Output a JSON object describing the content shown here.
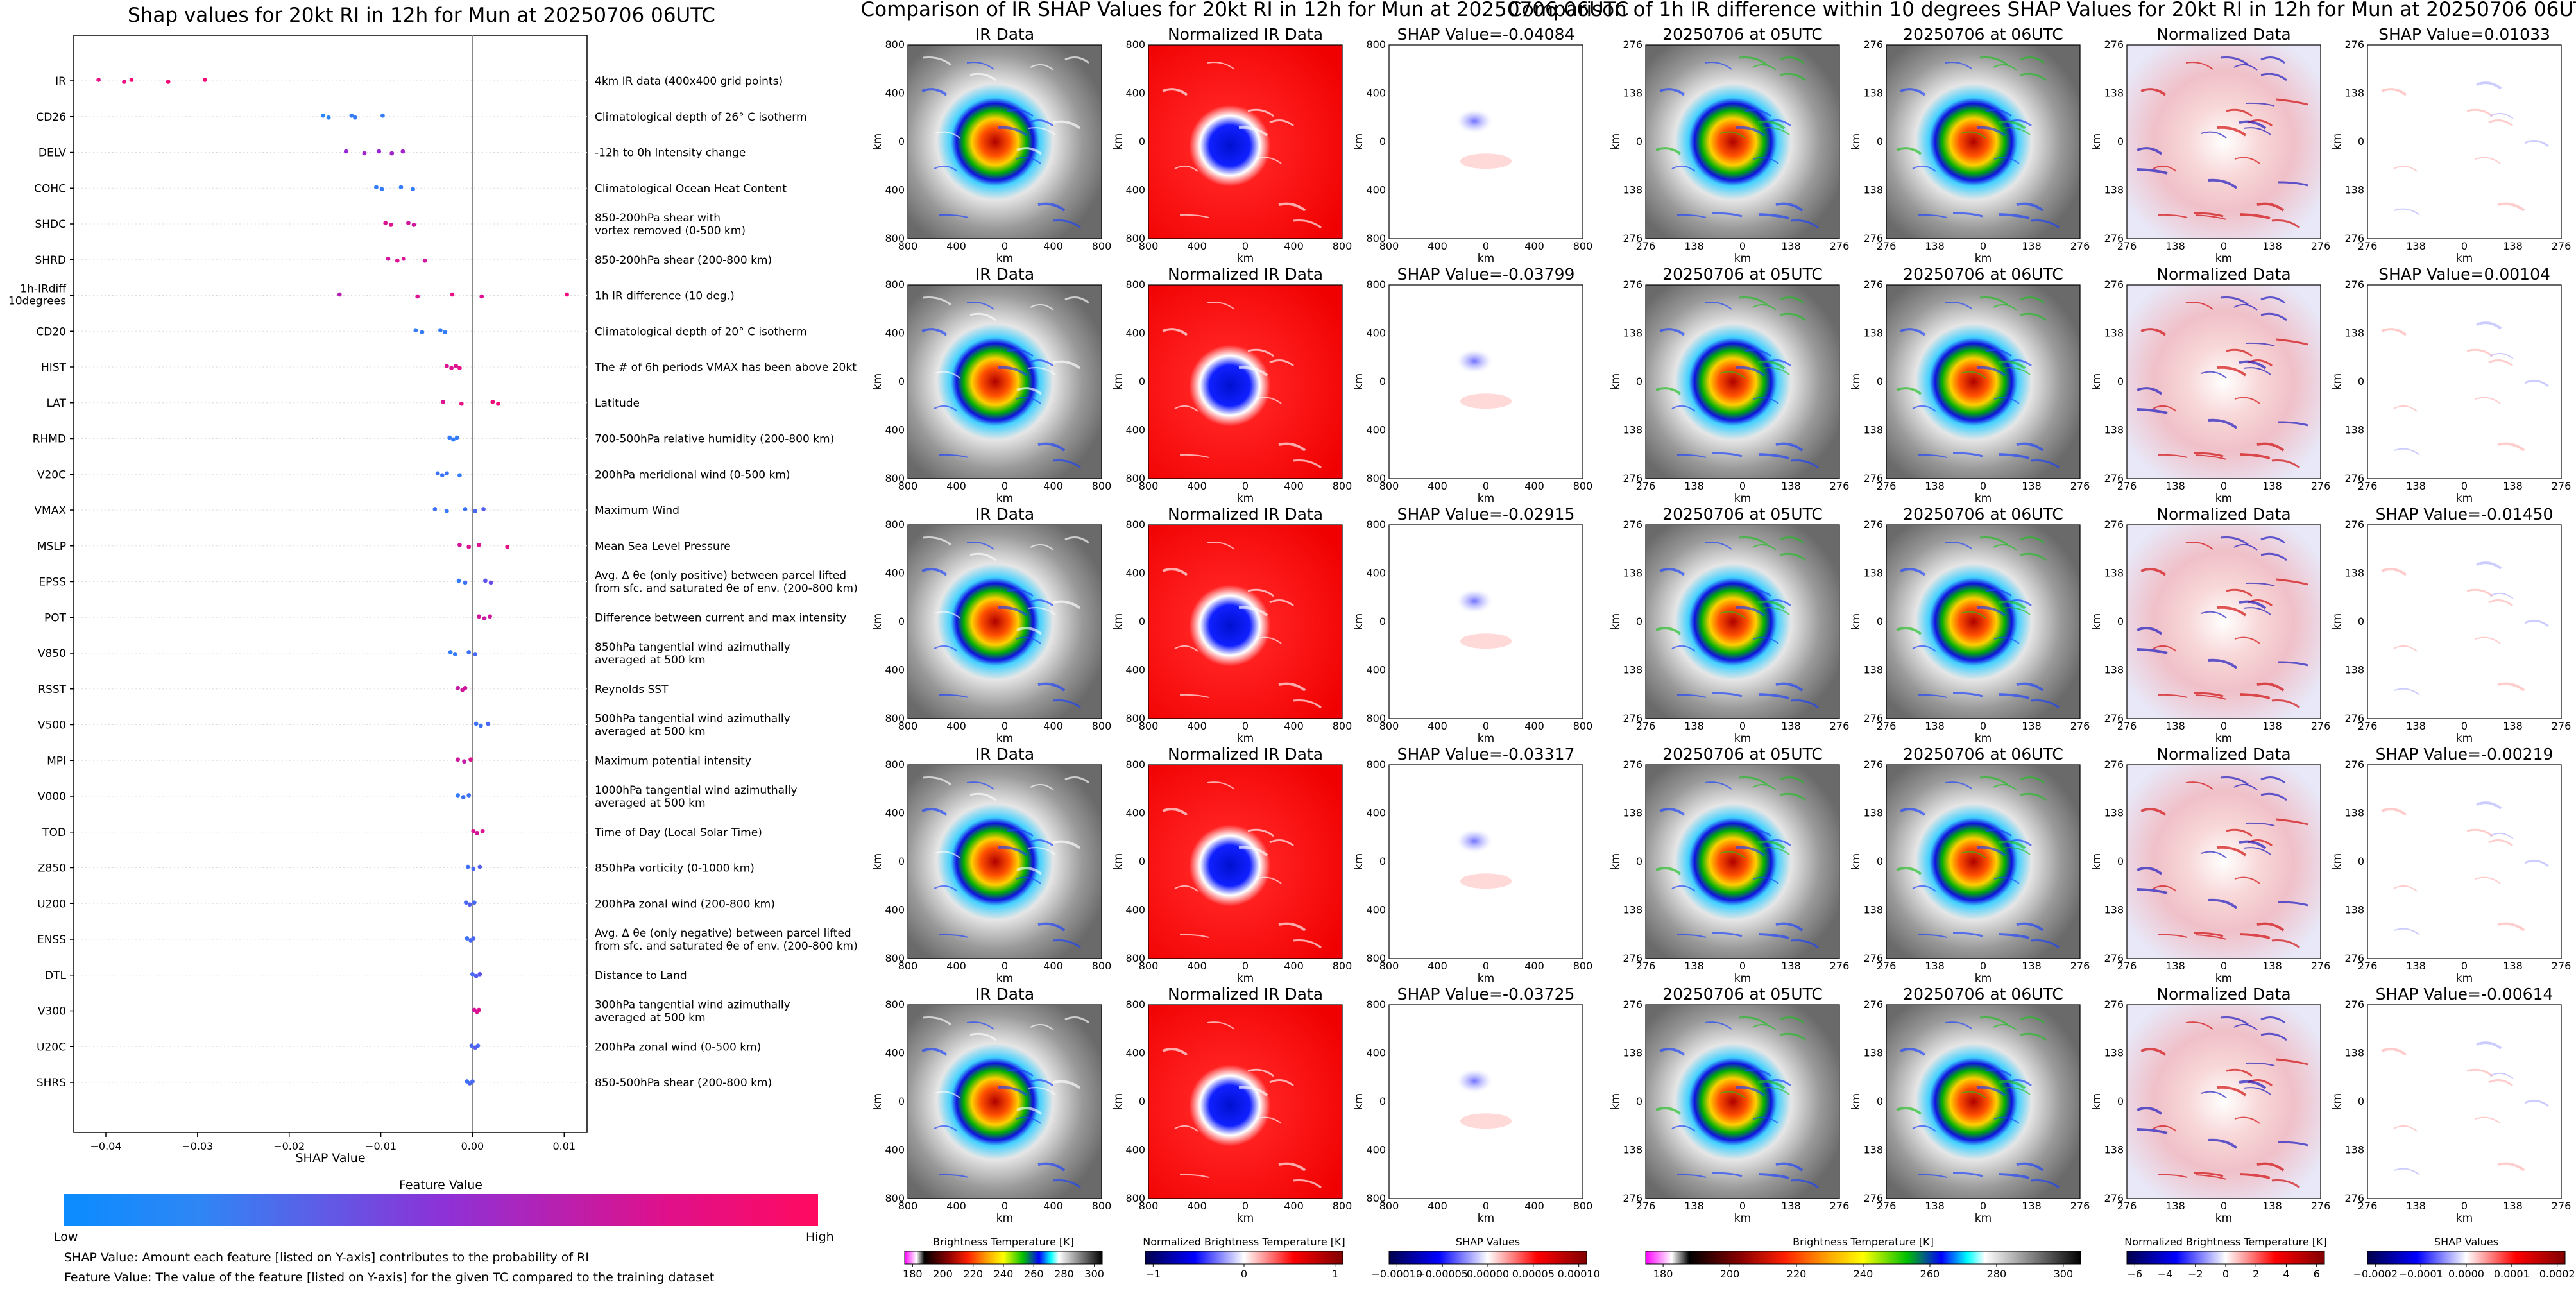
{
  "left_panel": {
    "title": "Shap values for 20kt RI in 12h for Mun at 20250706 06UTC",
    "xlabel": "SHAP Value",
    "colorbar_title": "Feature Value",
    "colorbar_low": "Low",
    "colorbar_high": "High",
    "note1": "SHAP Value: Amount each feature [listed on Y-axis] contributes to the probability of RI",
    "note2": "Feature Value: The value of the feature [listed on Y-axis] for the given TC compared to the training dataset",
    "colors": {
      "low": "#1e90ff",
      "mid": "#8a2be2",
      "high": "#ff0a6e"
    }
  },
  "ir_panel": {
    "title": "Comparison of IR SHAP Values for 20kt RI in 12h for Mun at 20250706 06UTC",
    "col_titles": [
      "IR Data",
      "Normalized IR Data"
    ],
    "shap_titles": [
      "SHAP Value=-0.04084",
      "SHAP Value=-0.03799",
      "SHAP Value=-0.02915",
      "SHAP Value=-0.03317",
      "SHAP Value=-0.03725"
    ],
    "axis_label": "km",
    "ticks": [
      "800",
      "400",
      "0",
      "400",
      "800"
    ],
    "cb1": {
      "label": "Brightness Temperature [K]",
      "ticks": [
        "180",
        "200",
        "220",
        "240",
        "260",
        "280",
        "300"
      ]
    },
    "cb2": {
      "label": "Normalized Brightness Temperature [K]",
      "ticks": [
        "−1",
        "0",
        "1"
      ]
    },
    "cb3": {
      "label": "SHAP Values",
      "ticks": [
        "−0.00010",
        "−0.00005",
        "0.00000",
        "0.00005",
        "0.00010"
      ]
    }
  },
  "diff_panel": {
    "title": "Comparison of 1h IR difference within 10 degrees SHAP Values for 20kt RI in 12h for Mun at 20250706 06UTC",
    "col_titles": [
      "20250706 at 05UTC",
      "20250706 at 06UTC",
      "Normalized Data"
    ],
    "shap_titles": [
      "SHAP Value=0.01033",
      "SHAP Value=0.00104",
      "SHAP Value=-0.01450",
      "SHAP Value=-0.00219",
      "SHAP Value=-0.00614"
    ],
    "axis_label": "km",
    "ticks": [
      "276",
      "138",
      "0",
      "138",
      "276"
    ],
    "cb1": {
      "label": "Brightness Temperature [K]",
      "ticks": [
        "180",
        "200",
        "220",
        "240",
        "260",
        "280",
        "300"
      ]
    },
    "cb2": {
      "label": "Normalized Brightness Temperature [K]",
      "ticks": [
        "−6",
        "−4",
        "−2",
        "0",
        "2",
        "4",
        "6"
      ]
    },
    "cb3": {
      "label": "SHAP Values",
      "ticks": [
        "−0.0002",
        "−0.0001",
        "0.0000",
        "0.0001",
        "0.0002"
      ]
    }
  },
  "chart_data": {
    "type": "scatter",
    "title": "Shap values for 20kt RI in 12h for Mun at 20250706 06UTC",
    "xlabel": "SHAP Value",
    "ylabel": "",
    "xlim": [
      -0.0435,
      0.0125
    ],
    "xticks": [
      "−0.04",
      "−0.03",
      "−0.02",
      "−0.01",
      "0.00",
      "0.01"
    ],
    "xtick_values": [
      -0.04,
      -0.03,
      -0.02,
      -0.01,
      0.0,
      0.01
    ],
    "grid": false,
    "features": [
      {
        "name": "IR",
        "desc": "4km IR data (400x400 grid points)",
        "points": [
          [
            -0.0408,
            0.9
          ],
          [
            -0.038,
            0.9
          ],
          [
            -0.0372,
            0.95
          ],
          [
            -0.0332,
            0.95
          ],
          [
            -0.0292,
            0.95
          ]
        ]
      },
      {
        "name": "CD26",
        "desc": "Climatological depth of 26° C isotherm",
        "points": [
          [
            -0.0163,
            0.05
          ],
          [
            -0.0157,
            0.05
          ],
          [
            -0.0132,
            0.1
          ],
          [
            -0.0128,
            0.1
          ],
          [
            -0.0098,
            0.1
          ]
        ]
      },
      {
        "name": "DELV",
        "desc": "-12h to 0h Intensity change",
        "points": [
          [
            -0.0138,
            0.55
          ],
          [
            -0.0118,
            0.6
          ],
          [
            -0.0102,
            0.55
          ],
          [
            -0.0088,
            0.6
          ],
          [
            -0.0076,
            0.6
          ]
        ]
      },
      {
        "name": "COHC",
        "desc": "Climatological Ocean Heat Content",
        "points": [
          [
            -0.0105,
            0.1
          ],
          [
            -0.0099,
            0.1
          ],
          [
            -0.0078,
            0.1
          ],
          [
            -0.0065,
            0.1
          ]
        ]
      },
      {
        "name": "SHDC",
        "desc": "850-200hPa shear with|vortex removed (0-500 km)",
        "points": [
          [
            -0.0095,
            0.85
          ],
          [
            -0.0089,
            0.85
          ],
          [
            -0.007,
            0.8
          ],
          [
            -0.0064,
            0.8
          ]
        ]
      },
      {
        "name": "SHRD",
        "desc": "850-200hPa shear (200-800 km)",
        "points": [
          [
            -0.0092,
            0.8
          ],
          [
            -0.0082,
            0.85
          ],
          [
            -0.0075,
            0.85
          ],
          [
            -0.0052,
            0.8
          ]
        ]
      },
      {
        "name": "1h-IRdiff|10degrees",
        "desc": "1h IR difference (10 deg.)",
        "points": [
          [
            -0.0145,
            0.7
          ],
          [
            -0.006,
            0.85
          ],
          [
            -0.0022,
            0.9
          ],
          [
            0.001,
            0.85
          ],
          [
            0.0103,
            0.95
          ]
        ]
      },
      {
        "name": "CD20",
        "desc": "Climatological depth of 20° C isotherm",
        "points": [
          [
            -0.0062,
            0.1
          ],
          [
            -0.0055,
            0.1
          ],
          [
            -0.0035,
            0.1
          ],
          [
            -0.003,
            0.1
          ]
        ]
      },
      {
        "name": "HIST",
        "desc": "The # of 6h periods VMAX has been above 20kt",
        "points": [
          [
            -0.0028,
            0.85
          ],
          [
            -0.0023,
            0.85
          ],
          [
            -0.0018,
            0.85
          ],
          [
            -0.0014,
            0.9
          ]
        ]
      },
      {
        "name": "LAT",
        "desc": "Latitude",
        "points": [
          [
            -0.0032,
            0.85
          ],
          [
            -0.0012,
            0.9
          ],
          [
            0.0022,
            0.95
          ],
          [
            0.0028,
            0.95
          ]
        ]
      },
      {
        "name": "RHMD",
        "desc": "700-500hPa relative humidity (200-800 km)",
        "points": [
          [
            -0.0025,
            0.1
          ],
          [
            -0.0021,
            0.1
          ],
          [
            -0.0017,
            0.1
          ]
        ]
      },
      {
        "name": "V20C",
        "desc": "200hPa meridional wind (0-500 km)",
        "points": [
          [
            -0.0038,
            0.15
          ],
          [
            -0.0033,
            0.15
          ],
          [
            -0.0028,
            0.15
          ],
          [
            -0.0014,
            0.1
          ]
        ]
      },
      {
        "name": "VMAX",
        "desc": "Maximum Wind",
        "points": [
          [
            -0.0041,
            0.15
          ],
          [
            -0.0028,
            0.1
          ],
          [
            -0.0008,
            0.15
          ],
          [
            0.0003,
            0.2
          ],
          [
            0.0012,
            0.25
          ]
        ]
      },
      {
        "name": "MSLP",
        "desc": "Mean Sea Level Pressure",
        "points": [
          [
            -0.0014,
            0.8
          ],
          [
            -0.0004,
            0.85
          ],
          [
            0.0007,
            0.85
          ],
          [
            0.0038,
            0.9
          ]
        ]
      },
      {
        "name": "EPSS",
        "desc": "Avg. Δ θe (only positive) between parcel lifted|from sfc. and saturated θe of env. (200-800 km)",
        "points": [
          [
            -0.0015,
            0.1
          ],
          [
            -0.0008,
            0.15
          ],
          [
            0.0014,
            0.3
          ],
          [
            0.002,
            0.35
          ]
        ]
      },
      {
        "name": "POT",
        "desc": "Difference between current and max intensity",
        "points": [
          [
            0.0007,
            0.8
          ],
          [
            0.0013,
            0.75
          ],
          [
            0.0019,
            0.8
          ]
        ]
      },
      {
        "name": "V850",
        "desc": "850hPa tangential wind azimuthally|averaged at 500 km",
        "points": [
          [
            -0.0024,
            0.1
          ],
          [
            -0.0019,
            0.1
          ],
          [
            -0.0004,
            0.15
          ],
          [
            0.0003,
            0.2
          ]
        ]
      },
      {
        "name": "RSST",
        "desc": "Reynolds SST",
        "points": [
          [
            -0.0016,
            0.75
          ],
          [
            -0.0011,
            0.8
          ],
          [
            -0.0008,
            0.8
          ]
        ]
      },
      {
        "name": "V500",
        "desc": "500hPa tangential wind azimuthally|averaged at 500 km",
        "points": [
          [
            0.0004,
            0.15
          ],
          [
            0.0009,
            0.15
          ],
          [
            0.0017,
            0.2
          ]
        ]
      },
      {
        "name": "MPI",
        "desc": "Maximum potential intensity",
        "points": [
          [
            -0.0016,
            0.8
          ],
          [
            -0.0009,
            0.75
          ],
          [
            -0.0002,
            0.85
          ]
        ]
      },
      {
        "name": "V000",
        "desc": "1000hPa tangential wind azimuthally|averaged at 500 km",
        "points": [
          [
            -0.0016,
            0.1
          ],
          [
            -0.001,
            0.15
          ],
          [
            -0.0004,
            0.15
          ]
        ]
      },
      {
        "name": "TOD",
        "desc": "Time of Day (Local Solar Time)",
        "points": [
          [
            0.0001,
            0.85
          ],
          [
            0.0005,
            0.8
          ],
          [
            0.0011,
            0.85
          ]
        ]
      },
      {
        "name": "Z850",
        "desc": "850hPa vorticity (0-1000 km)",
        "points": [
          [
            -0.0005,
            0.15
          ],
          [
            0.0001,
            0.2
          ],
          [
            0.0008,
            0.25
          ]
        ]
      },
      {
        "name": "U200",
        "desc": "200hPa zonal wind (200-800 km)",
        "points": [
          [
            -0.0007,
            0.2
          ],
          [
            -0.0003,
            0.25
          ],
          [
            0.0002,
            0.2
          ]
        ]
      },
      {
        "name": "ENSS",
        "desc": "Avg. Δ θe (only negative) between parcel lifted|from sfc. and saturated θe of env. (200-800 km)",
        "points": [
          [
            -0.0006,
            0.15
          ],
          [
            -0.0002,
            0.2
          ],
          [
            0.0001,
            0.2
          ]
        ]
      },
      {
        "name": "DTL",
        "desc": "Distance to Land",
        "points": [
          [
            0.0,
            0.2
          ],
          [
            0.0004,
            0.25
          ],
          [
            0.0008,
            0.3
          ]
        ]
      },
      {
        "name": "V300",
        "desc": "300hPa tangential wind azimuthally|averaged at 500 km",
        "points": [
          [
            0.0002,
            0.8
          ],
          [
            0.0005,
            0.85
          ],
          [
            0.0007,
            0.85
          ]
        ]
      },
      {
        "name": "U20C",
        "desc": "200hPa zonal wind (0-500 km)",
        "points": [
          [
            -0.0001,
            0.2
          ],
          [
            0.0003,
            0.25
          ],
          [
            0.0006,
            0.2
          ]
        ]
      },
      {
        "name": "SHRS",
        "desc": "850-500hPa shear (200-800 km)",
        "points": [
          [
            -0.0006,
            0.15
          ],
          [
            -0.0003,
            0.2
          ],
          [
            0.0,
            0.2
          ]
        ]
      }
    ]
  }
}
